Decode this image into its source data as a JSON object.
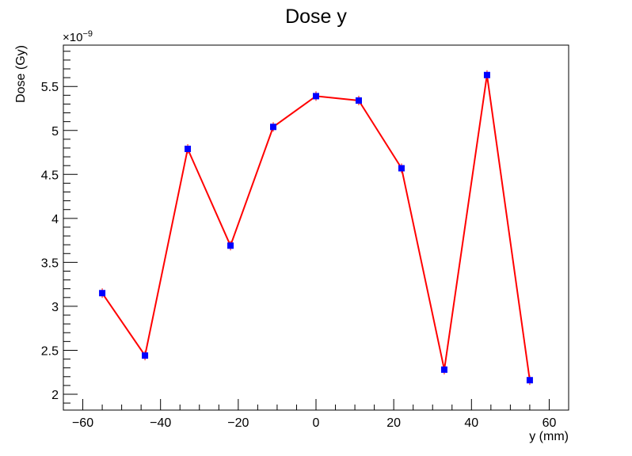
{
  "chart_data": {
    "type": "line",
    "title": "Dose y",
    "xlabel": "y (mm)",
    "ylabel": "Dose (Gy)",
    "y_scale_label": "×10",
    "y_scale_exponent": "−9",
    "xlim": [
      -65,
      65
    ],
    "ylim": [
      1.82,
      5.97
    ],
    "xticks": [
      -60,
      -40,
      -20,
      0,
      20,
      40,
      60
    ],
    "xtick_labels": [
      "−60",
      "−40",
      "−20",
      "0",
      "20",
      "40",
      "60"
    ],
    "yticks": [
      2,
      2.5,
      3,
      3.5,
      4,
      4.5,
      5,
      5.5
    ],
    "ytick_labels": [
      "2",
      "2.5",
      "3",
      "3.5",
      "4",
      "4.5",
      "5",
      "5.5"
    ],
    "grid": false,
    "legend": "none",
    "series": [
      {
        "x": [
          -55,
          -44,
          -33,
          -22,
          -11,
          0,
          11,
          22,
          33,
          44,
          55
        ],
        "y": [
          3.15,
          2.44,
          4.79,
          3.69,
          5.04,
          5.39,
          5.34,
          4.57,
          2.28,
          5.63,
          2.16
        ],
        "line_color": "#ff0000",
        "marker_color": "#0000ff",
        "marker": "square"
      }
    ]
  }
}
